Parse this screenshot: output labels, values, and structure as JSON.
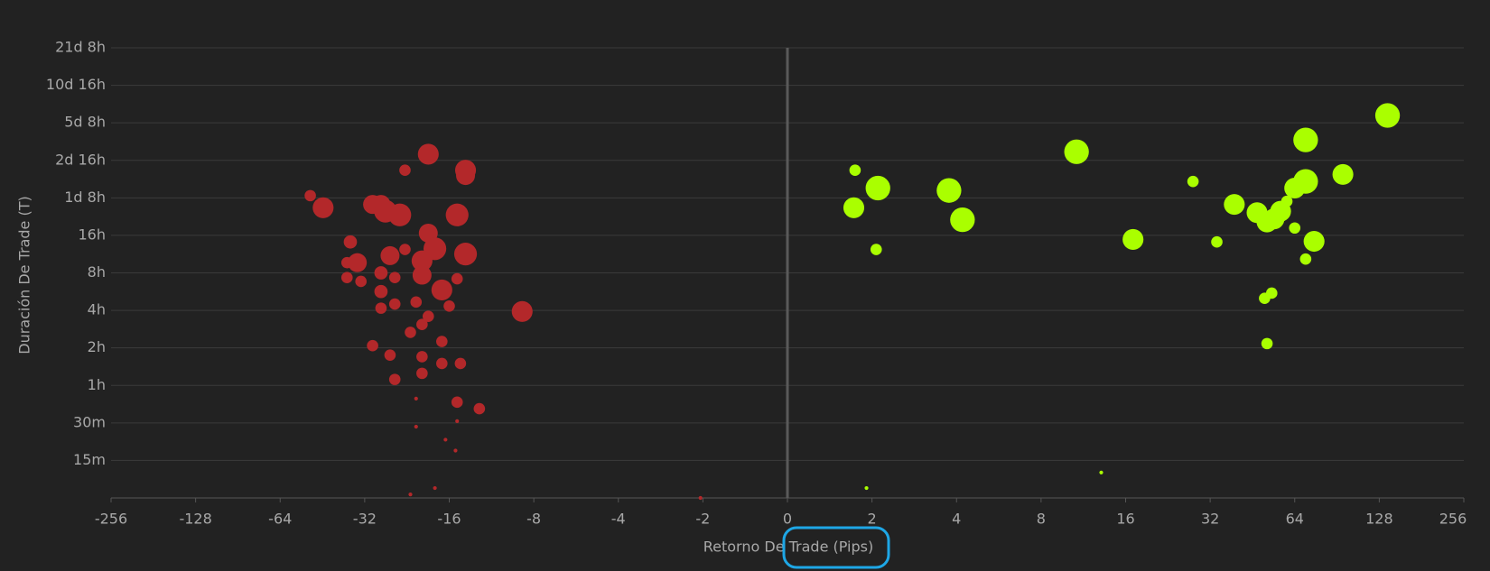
{
  "chart_data": {
    "type": "bubble",
    "x_label": "Retorno De Trade (Pips)",
    "y_label": "Duración De Trade (T)",
    "xscale": "symlog",
    "linthresh": 2,
    "yscale": "log",
    "grid": true,
    "xlim": [
      -256,
      256
    ],
    "xticks": [
      -256,
      -128,
      -64,
      -32,
      -16,
      -8,
      -4,
      -2,
      0,
      2,
      4,
      8,
      16,
      32,
      64,
      128,
      256
    ],
    "ylim": [
      7.5,
      30720
    ],
    "yticks": [
      {
        "value": 15,
        "label": "15m"
      },
      {
        "value": 30,
        "label": "30m"
      },
      {
        "value": 60,
        "label": "1h"
      },
      {
        "value": 120,
        "label": "2h"
      },
      {
        "value": 240,
        "label": "4h"
      },
      {
        "value": 480,
        "label": "8h"
      },
      {
        "value": 960,
        "label": "16h"
      },
      {
        "value": 1920,
        "label": "1d 8h"
      },
      {
        "value": 3840,
        "label": "2d 16h"
      },
      {
        "value": 7680,
        "label": "5d 8h"
      },
      {
        "value": 15360,
        "label": "10d 16h"
      },
      {
        "value": 30720,
        "label": "21d 8h"
      }
    ],
    "series": [
      {
        "color": "#b3282a",
        "x": [
          -50,
          -45,
          -23,
          -19,
          -14,
          -14,
          -30,
          -28,
          -27,
          -24,
          -15,
          -19,
          -36,
          -18,
          -14,
          -37,
          -34,
          -26,
          -23,
          -20,
          -20,
          -37,
          -33,
          -28,
          -25,
          -15,
          -17,
          -28,
          -21,
          -28,
          -25,
          -16,
          -19,
          -20,
          -22,
          -17,
          -8.8,
          -30,
          -26,
          -20,
          -17,
          -14.6,
          -25,
          -20,
          -15,
          -12.5,
          -21,
          -21,
          -15,
          -16.5,
          -15.2,
          -18,
          -22,
          -2.04
        ],
        "y": [
          2000,
          1600,
          3200,
          4300,
          3200,
          2900,
          1700,
          1700,
          1500,
          1400,
          1400,
          1000,
          850,
          750,
          680,
          580,
          580,
          660,
          740,
          600,
          460,
          440,
          410,
          480,
          440,
          430,
          350,
          340,
          280,
          250,
          270,
          260,
          215,
          185,
          160,
          135,
          235,
          125,
          105,
          102,
          90,
          90,
          67,
          75,
          44,
          39,
          47,
          28,
          31,
          22,
          18,
          9,
          8,
          7.5
        ],
        "size": [
          6,
          11,
          6,
          11,
          11,
          10,
          10,
          10,
          12,
          12,
          12,
          10,
          7,
          12,
          12,
          6,
          10,
          10,
          6,
          11,
          10,
          6,
          6,
          7,
          6,
          6,
          11,
          7,
          6,
          6,
          6,
          6,
          6,
          6,
          6,
          6,
          11,
          6,
          6,
          6,
          6,
          6,
          6,
          6,
          6,
          6,
          2,
          2,
          2,
          2,
          2,
          2,
          2,
          2
        ]
      },
      {
        "color": "#aaff00",
        "x": [
          1.6,
          2.1,
          1.57,
          2.07,
          1.87,
          3.76,
          4.2,
          10.7,
          13.1,
          17,
          27.8,
          33.8,
          39,
          47,
          51,
          54,
          57,
          60,
          64,
          70,
          70,
          64,
          70,
          75,
          95,
          137,
          50,
          53,
          51
        ],
        "y": [
          3200,
          2300,
          1600,
          740,
          9,
          2200,
          1280,
          4500,
          12,
          890,
          2600,
          850,
          1700,
          1460,
          1230,
          1300,
          1500,
          1800,
          2300,
          2600,
          5600,
          1100,
          620,
          860,
          2960,
          8800,
          300,
          330,
          130
        ],
        "size": [
          6,
          13,
          11,
          6,
          2,
          13,
          13,
          13,
          2,
          11,
          6,
          6,
          11,
          11,
          11,
          11,
          11,
          6,
          11,
          13,
          13,
          6,
          6,
          11,
          11,
          13,
          6,
          6,
          6
        ]
      }
    ]
  }
}
